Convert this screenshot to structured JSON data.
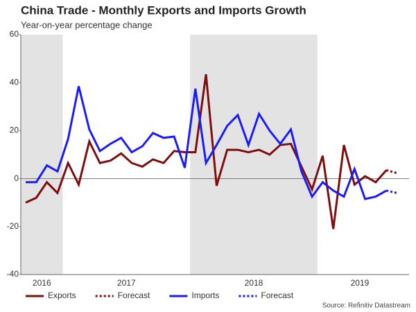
{
  "chart_data": {
    "type": "line",
    "title": "China Trade - Monthly Exports and Imports Growth",
    "subtitle": "Year-on-year percentage change",
    "source": "Source: Refinitiv Datastream",
    "categories": [
      "2016",
      "2016",
      "2016",
      "2016",
      "2017",
      "2017",
      "2017",
      "2017",
      "2017",
      "2017",
      "2017",
      "2017",
      "2017",
      "2017",
      "2017",
      "2017",
      "2018",
      "2018",
      "2018",
      "2018",
      "2018",
      "2018",
      "2018",
      "2018",
      "2018",
      "2018",
      "2018",
      "2018",
      "2019",
      "2019",
      "2019",
      "2019",
      "2019",
      "2019",
      "2019",
      "2019"
    ],
    "shade_alternate_groups": true,
    "series": [
      {
        "name": "Exports",
        "color": "#7f0d0d",
        "style": "solid",
        "values": [
          -10,
          -8,
          -1.5,
          -6,
          6.5,
          -2.5,
          15.5,
          6.5,
          7.5,
          10.5,
          6.5,
          5,
          8,
          6.5,
          11.5,
          11,
          11,
          43.5,
          -3,
          12,
          12,
          11,
          12,
          10,
          14,
          14.5,
          5,
          -4.5,
          9.5,
          -21,
          14,
          -2.5,
          1,
          -1.5,
          3.5,
          null
        ]
      },
      {
        "name": "Forecast",
        "color": "#7f0d0d",
        "style": "dotted",
        "values": [
          null,
          null,
          null,
          null,
          null,
          null,
          null,
          null,
          null,
          null,
          null,
          null,
          null,
          null,
          null,
          null,
          null,
          null,
          null,
          null,
          null,
          null,
          null,
          null,
          null,
          null,
          null,
          null,
          null,
          null,
          null,
          null,
          null,
          null,
          3.5,
          2.3
        ]
      },
      {
        "name": "Imports",
        "color": "#1a1aff",
        "style": "solid",
        "values": [
          -1.5,
          -1.5,
          5.5,
          3,
          16.5,
          38.5,
          20.5,
          11.5,
          14.5,
          17,
          11,
          13.5,
          19,
          17,
          17.5,
          4.5,
          37.5,
          6.5,
          14,
          22,
          26.5,
          14,
          27,
          20,
          14.5,
          20.5,
          3,
          -7.5,
          -1.5,
          -5,
          -7.5,
          4,
          -8.5,
          -7.5,
          -5,
          null
        ]
      },
      {
        "name": "Forecast",
        "color": "#1a1aff",
        "style": "dotted",
        "values": [
          null,
          null,
          null,
          null,
          null,
          null,
          null,
          null,
          null,
          null,
          null,
          null,
          null,
          null,
          null,
          null,
          null,
          null,
          null,
          null,
          null,
          null,
          null,
          null,
          null,
          null,
          null,
          null,
          null,
          null,
          null,
          null,
          null,
          null,
          -5,
          -6
        ]
      }
    ],
    "ylim": [
      -40,
      60
    ],
    "yticks": [
      -40,
      -20,
      0,
      20,
      40,
      60
    ]
  }
}
